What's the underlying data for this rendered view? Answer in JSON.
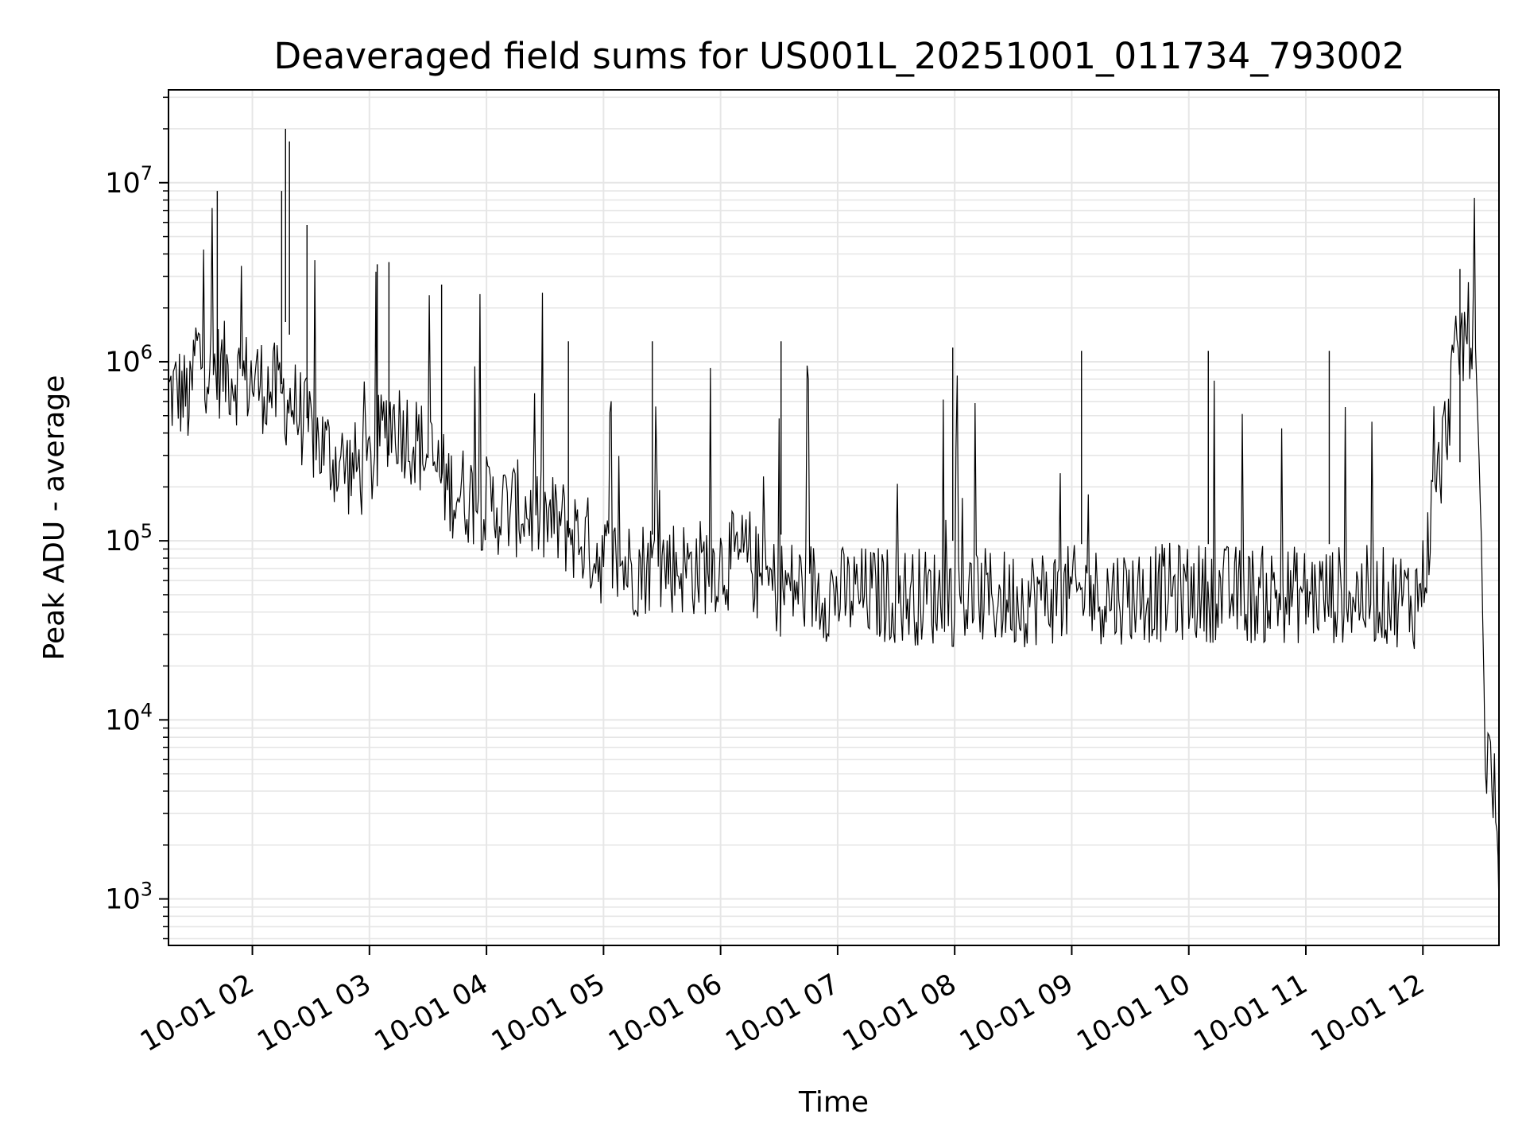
{
  "chart_data": {
    "type": "line",
    "title": "Deaveraged field sums for US001L_20251001_011734_793002",
    "xlabel": "Time",
    "ylabel": "Peak ADU - average",
    "x_scale": "time",
    "y_scale": "log",
    "xlim": [
      "2025-10-01 01:17",
      "2025-10-01 12:39"
    ],
    "ylim": [
      550,
      33000000
    ],
    "grid": true,
    "line_color": "#000000",
    "grid_color": "#e6e6e6",
    "x_ticks": [
      {
        "t": "2025-10-01 02:00",
        "label": "10-01 02"
      },
      {
        "t": "2025-10-01 03:00",
        "label": "10-01 03"
      },
      {
        "t": "2025-10-01 04:00",
        "label": "10-01 04"
      },
      {
        "t": "2025-10-01 05:00",
        "label": "10-01 05"
      },
      {
        "t": "2025-10-01 06:00",
        "label": "10-01 06"
      },
      {
        "t": "2025-10-01 07:00",
        "label": "10-01 07"
      },
      {
        "t": "2025-10-01 08:00",
        "label": "10-01 08"
      },
      {
        "t": "2025-10-01 09:00",
        "label": "10-01 09"
      },
      {
        "t": "2025-10-01 10:00",
        "label": "10-01 10"
      },
      {
        "t": "2025-10-01 11:00",
        "label": "10-01 11"
      },
      {
        "t": "2025-10-01 12:00",
        "label": "10-01 12"
      }
    ],
    "y_ticks": [
      {
        "value": 1000,
        "base": "10",
        "exp": "3"
      },
      {
        "value": 10000,
        "base": "10",
        "exp": "4"
      },
      {
        "value": 100000,
        "base": "10",
        "exp": "5"
      },
      {
        "value": 1000000,
        "base": "10",
        "exp": "6"
      },
      {
        "value": 10000000,
        "base": "10",
        "exp": "7"
      }
    ],
    "series": [
      {
        "x": [
          "2025-10-01 01:17",
          "2025-10-01 01:22",
          "2025-10-01 01:27",
          "2025-10-01 01:28",
          "2025-10-01 01:31",
          "2025-10-01 01:35",
          "2025-10-01 01:40",
          "2025-10-01 01:45",
          "2025-10-01 01:50",
          "2025-10-01 01:55",
          "2025-10-01 02:00",
          "2025-10-01 02:10",
          "2025-10-01 02:20",
          "2025-10-01 02:30",
          "2025-10-01 02:40",
          "2025-10-01 02:50",
          "2025-10-01 03:00",
          "2025-10-01 03:10",
          "2025-10-01 03:20",
          "2025-10-01 03:30",
          "2025-10-01 03:40",
          "2025-10-01 03:50",
          "2025-10-01 04:00",
          "2025-10-01 04:10",
          "2025-10-01 04:20",
          "2025-10-01 04:30",
          "2025-10-01 04:40",
          "2025-10-01 04:50",
          "2025-10-01 05:00",
          "2025-10-01 05:15",
          "2025-10-01 05:30",
          "2025-10-01 05:45",
          "2025-10-01 06:00",
          "2025-10-01 06:15",
          "2025-10-01 06:20",
          "2025-10-01 06:30",
          "2025-10-01 06:45",
          "2025-10-01 07:00",
          "2025-10-01 07:30",
          "2025-10-01 08:00",
          "2025-10-01 08:30",
          "2025-10-01 09:00",
          "2025-10-01 09:30",
          "2025-10-01 10:00",
          "2025-10-01 10:30",
          "2025-10-01 11:00",
          "2025-10-01 11:30",
          "2025-10-01 11:50",
          "2025-10-01 11:55",
          "2025-10-01 12:00",
          "2025-10-01 12:05",
          "2025-10-01 12:10",
          "2025-10-01 12:15",
          "2025-10-01 12:20",
          "2025-10-01 12:24",
          "2025-10-01 12:27",
          "2025-10-01 12:30",
          "2025-10-01 12:32",
          "2025-10-01 12:34",
          "2025-10-01 12:36",
          "2025-10-01 12:38",
          "2025-10-01 12:39"
        ],
        "values": [
          650000,
          700000,
          600000,
          550000,
          1200000,
          1000000,
          900000,
          900000,
          850000,
          800000,
          800000,
          700000,
          600000,
          400000,
          300000,
          250000,
          250000,
          500000,
          400000,
          300000,
          200000,
          180000,
          160000,
          150000,
          150000,
          130000,
          120000,
          100000,
          80000,
          70000,
          75000,
          70000,
          75000,
          80000,
          60000,
          55000,
          55000,
          50000,
          50000,
          48000,
          48000,
          50000,
          50000,
          52000,
          50000,
          50000,
          50000,
          48000,
          45000,
          60000,
          150000,
          300000,
          800000,
          1300000,
          1500000,
          1200000,
          100000,
          6000,
          6000,
          5000,
          2000,
          900
        ],
        "spikes": [
          {
            "t": "2025-10-01 01:42",
            "value": 9000000
          },
          {
            "t": "2025-10-01 02:15",
            "value": 9000000
          },
          {
            "t": "2025-10-01 02:17",
            "value": 20000000
          },
          {
            "t": "2025-10-01 02:19",
            "value": 17000000
          },
          {
            "t": "2025-10-01 02:28",
            "value": 5800000
          },
          {
            "t": "2025-10-01 03:04",
            "value": 3500000
          },
          {
            "t": "2025-10-01 03:10",
            "value": 3600000
          },
          {
            "t": "2025-10-01 03:37",
            "value": 2700000
          },
          {
            "t": "2025-10-01 04:42",
            "value": 1300000
          },
          {
            "t": "2025-10-01 05:25",
            "value": 1300000
          },
          {
            "t": "2025-10-01 06:31",
            "value": 1300000
          },
          {
            "t": "2025-10-01 07:59",
            "value": 1200000
          },
          {
            "t": "2025-10-01 09:05",
            "value": 1150000
          },
          {
            "t": "2025-10-01 10:10",
            "value": 1150000
          },
          {
            "t": "2025-10-01 11:12",
            "value": 1150000
          },
          {
            "t": "2025-10-01 12:19",
            "value": 3300000
          }
        ]
      }
    ]
  }
}
